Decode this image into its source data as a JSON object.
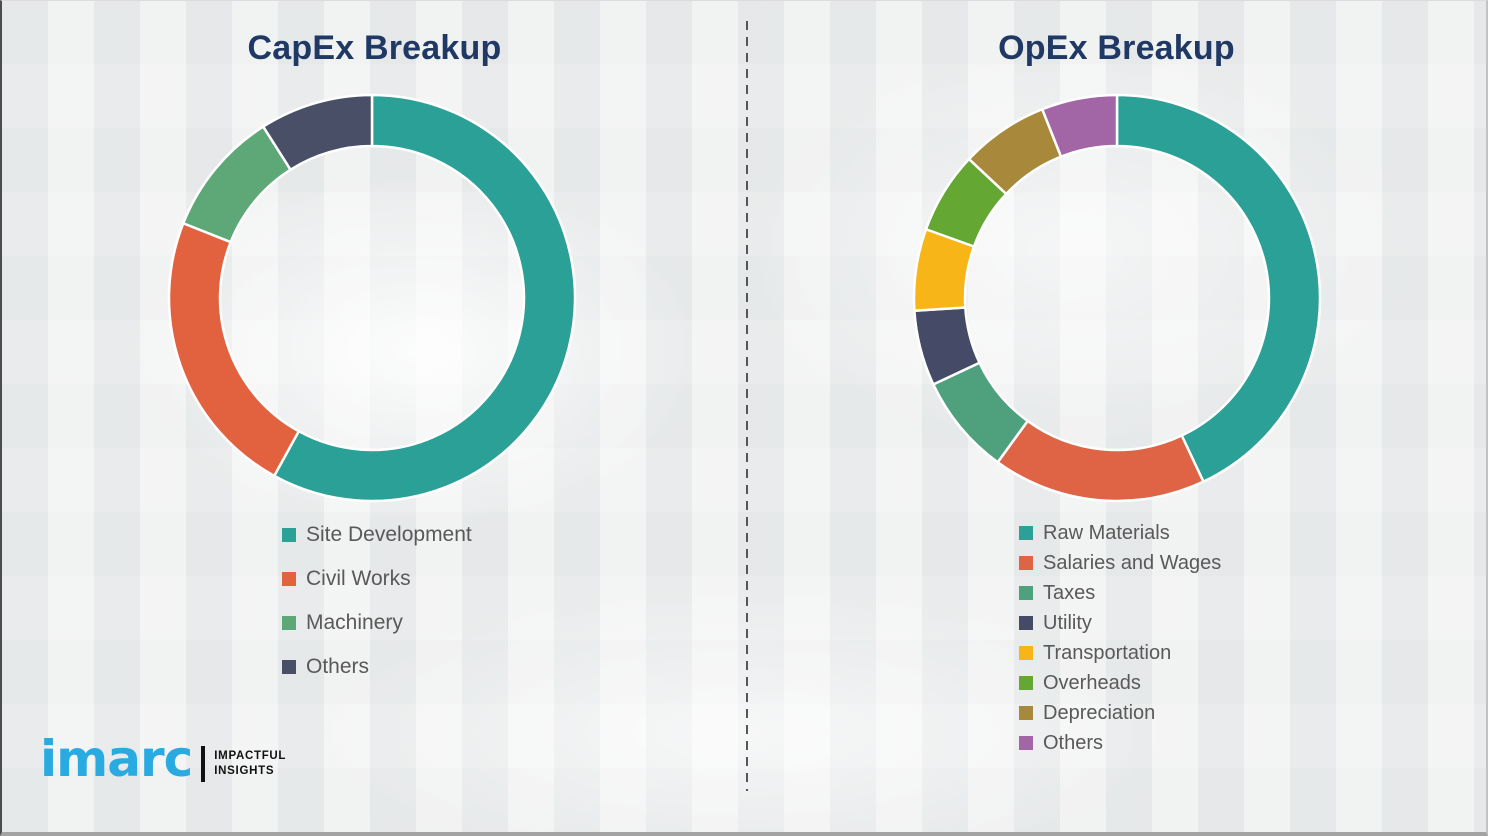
{
  "page": {
    "background_color": "#eff0f0",
    "title_color": "#1f3864",
    "legend_text_color": "#595959",
    "divider_color": "#53565c"
  },
  "chart_data": [
    {
      "type": "pie",
      "donut": true,
      "title": "CapEx Breakup",
      "categories": [
        "Site Development",
        "Civil Works",
        "Machinery",
        "Others"
      ],
      "values": [
        58,
        23,
        10,
        9
      ],
      "colors": [
        "#2ba096",
        "#e2613f",
        "#5ea777",
        "#4a4f68"
      ],
      "units": "percent-share-estimated",
      "start_angle_deg": 0,
      "direction": "clockwise",
      "legend_position": "below-left",
      "data_labels": false
    },
    {
      "type": "pie",
      "donut": true,
      "title": "OpEx Breakup",
      "categories": [
        "Raw Materials",
        "Salaries and Wages",
        "Taxes",
        "Utility",
        "Transportation",
        "Overheads",
        "Depreciation",
        "Others"
      ],
      "values": [
        43,
        17,
        8,
        6,
        6.5,
        6.5,
        7,
        6
      ],
      "colors": [
        "#2ba096",
        "#df6445",
        "#4fa17d",
        "#454b66",
        "#f8b517",
        "#64a733",
        "#a8883b",
        "#a266a7"
      ],
      "units": "percent-share-estimated",
      "start_angle_deg": 0,
      "direction": "clockwise",
      "legend_position": "below-left",
      "data_labels": false
    }
  ],
  "logo": {
    "brand": "imarc",
    "brand_color": "#29aae1",
    "tagline_line1": "IMPACTFUL",
    "tagline_line2": "INSIGHTS"
  }
}
